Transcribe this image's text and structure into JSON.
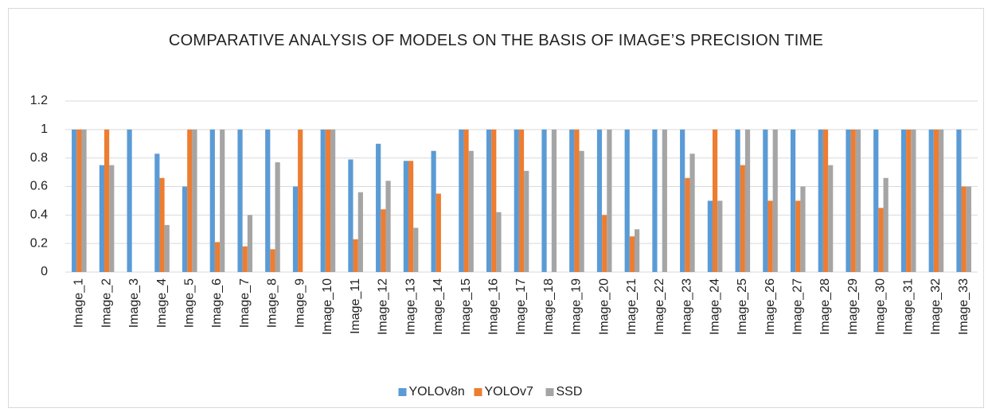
{
  "chart_data": {
    "type": "bar",
    "title": "COMPARATIVE ANALYSIS OF MODELS ON THE BASIS OF IMAGE’S PRECISION TIME",
    "categories": [
      "Image_1",
      "Image_2",
      "Image_3",
      "Image_4",
      "Image_5",
      "Image_6",
      "Image_7",
      "Image_8",
      "Image_9",
      "Image_10",
      "Image_11",
      "Image_12",
      "Image_13",
      "Image_14",
      "Image_15",
      "Image_16",
      "Image_17",
      "Image_18",
      "Image_19",
      "Image_20",
      "Image_21",
      "Image_22",
      "Image_23",
      "Image_24",
      "Image_25",
      "Image_26",
      "Image_27",
      "Image_28",
      "Image_29",
      "Image_30",
      "Image_31",
      "Image_32",
      "Image_33"
    ],
    "series": [
      {
        "name": "YOLOv8n",
        "color": "#5b9bd5",
        "values": [
          1,
          0.75,
          1,
          0.83,
          0.6,
          1,
          1,
          1,
          0.6,
          1,
          0.79,
          0.9,
          0.78,
          0.85,
          1,
          1,
          1,
          1,
          1,
          1,
          1,
          1,
          1,
          0.5,
          1,
          1,
          1,
          1,
          1,
          1,
          1,
          1,
          1
        ]
      },
      {
        "name": "YOLOv7",
        "color": "#ed7d31",
        "values": [
          1,
          1,
          0,
          0.66,
          1,
          0.21,
          0.18,
          0.16,
          1,
          1,
          0.23,
          0.44,
          0.78,
          0.55,
          1,
          1,
          1,
          0,
          1,
          0.4,
          0.25,
          0,
          0.66,
          1,
          0.75,
          0.5,
          0.5,
          1,
          1,
          0.45,
          1,
          1,
          0.6
        ]
      },
      {
        "name": "SSD",
        "color": "#a5a5a5",
        "values": [
          1,
          0.75,
          0,
          0.33,
          1,
          1,
          0.4,
          0.77,
          0,
          1,
          0.56,
          0.64,
          0.31,
          0,
          0.85,
          0.42,
          0.71,
          1,
          0.85,
          1,
          0.3,
          1,
          0.83,
          0.5,
          1,
          1,
          0.6,
          0.75,
          1,
          0.66,
          1,
          1,
          0.6
        ]
      }
    ],
    "ylim": [
      0,
      1.2
    ],
    "yticks": [
      0,
      0.2,
      0.4,
      0.6,
      0.8,
      1,
      1.2
    ],
    "grid": true,
    "legend": "bottom"
  }
}
